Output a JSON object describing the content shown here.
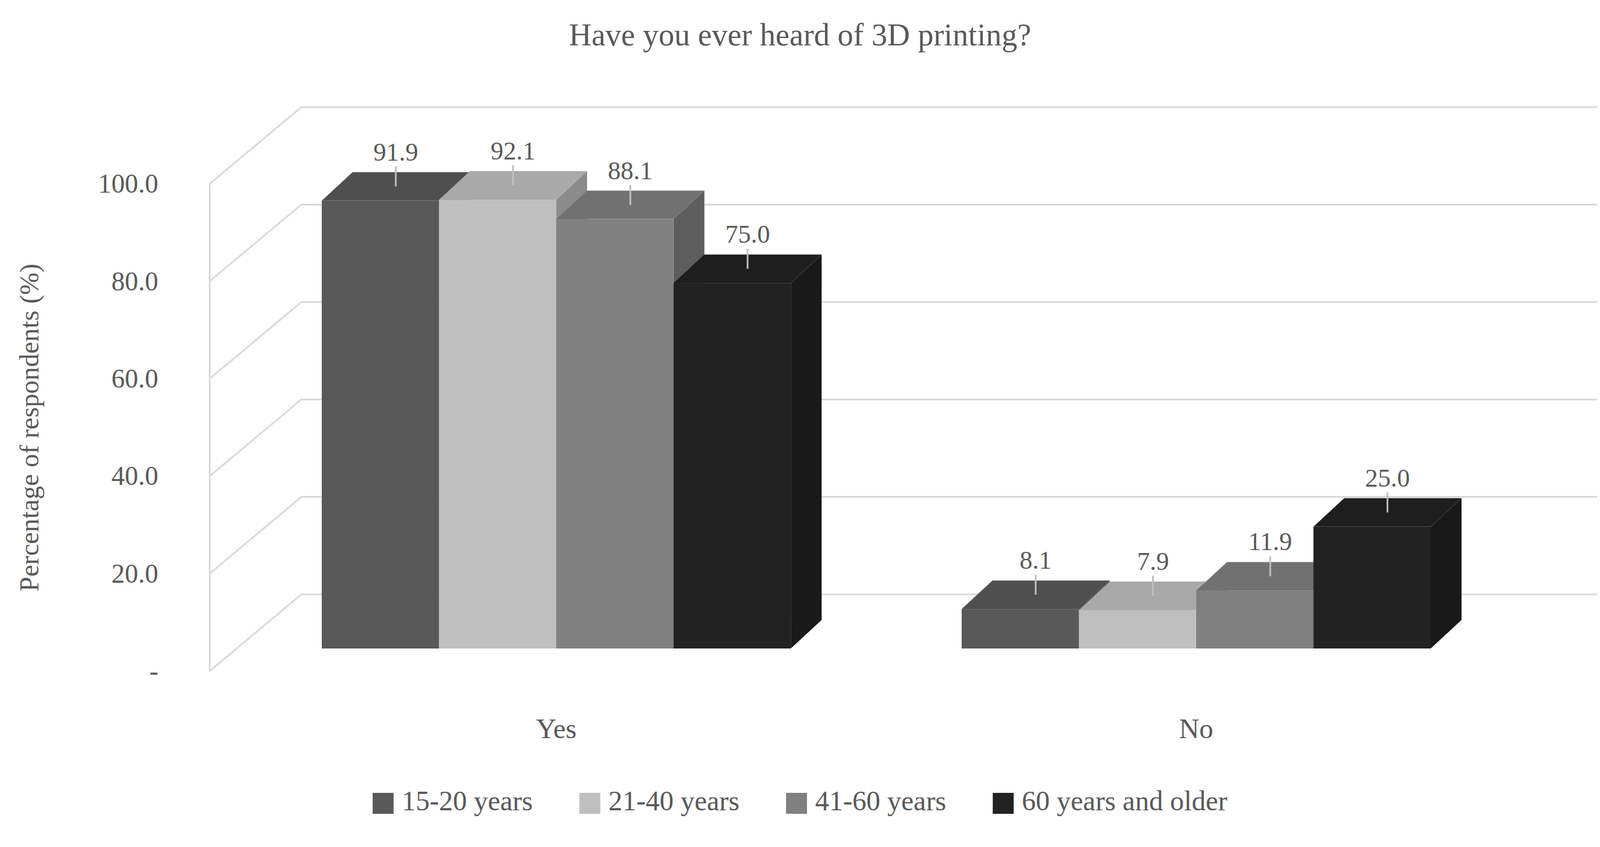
{
  "chart_data": {
    "type": "bar",
    "title": "Have you ever heard of 3D printing?",
    "y_label": "Percentage of respondents (%)",
    "categories": [
      "Yes",
      "No"
    ],
    "series": [
      {
        "name": "15-20 years",
        "color": "#595959",
        "values": [
          91.9,
          8.1
        ],
        "value_labels": [
          "91.9",
          "8.1"
        ]
      },
      {
        "name": "21-40 years",
        "color": "#bfbfbf",
        "values": [
          92.1,
          7.9
        ],
        "value_labels": [
          "92.1",
          "7.9"
        ]
      },
      {
        "name": "41-60 years",
        "color": "#808080",
        "values": [
          88.1,
          11.9
        ],
        "value_labels": [
          "88.1",
          "11.9"
        ]
      },
      {
        "name": "60 years and older",
        "color": "#222222",
        "values": [
          75.0,
          25.0
        ],
        "value_labels": [
          "75.0",
          "25.0"
        ]
      }
    ],
    "ylim": [
      0,
      100
    ],
    "yticks": [
      {
        "value": 0,
        "label": "-"
      },
      {
        "value": 20,
        "label": "20.0"
      },
      {
        "value": 40,
        "label": "40.0"
      },
      {
        "value": 60,
        "label": "60.0"
      },
      {
        "value": 80,
        "label": "80.0"
      },
      {
        "value": 100,
        "label": "100.0"
      }
    ],
    "grid": true,
    "data_labels": true,
    "legend": "bottom"
  }
}
